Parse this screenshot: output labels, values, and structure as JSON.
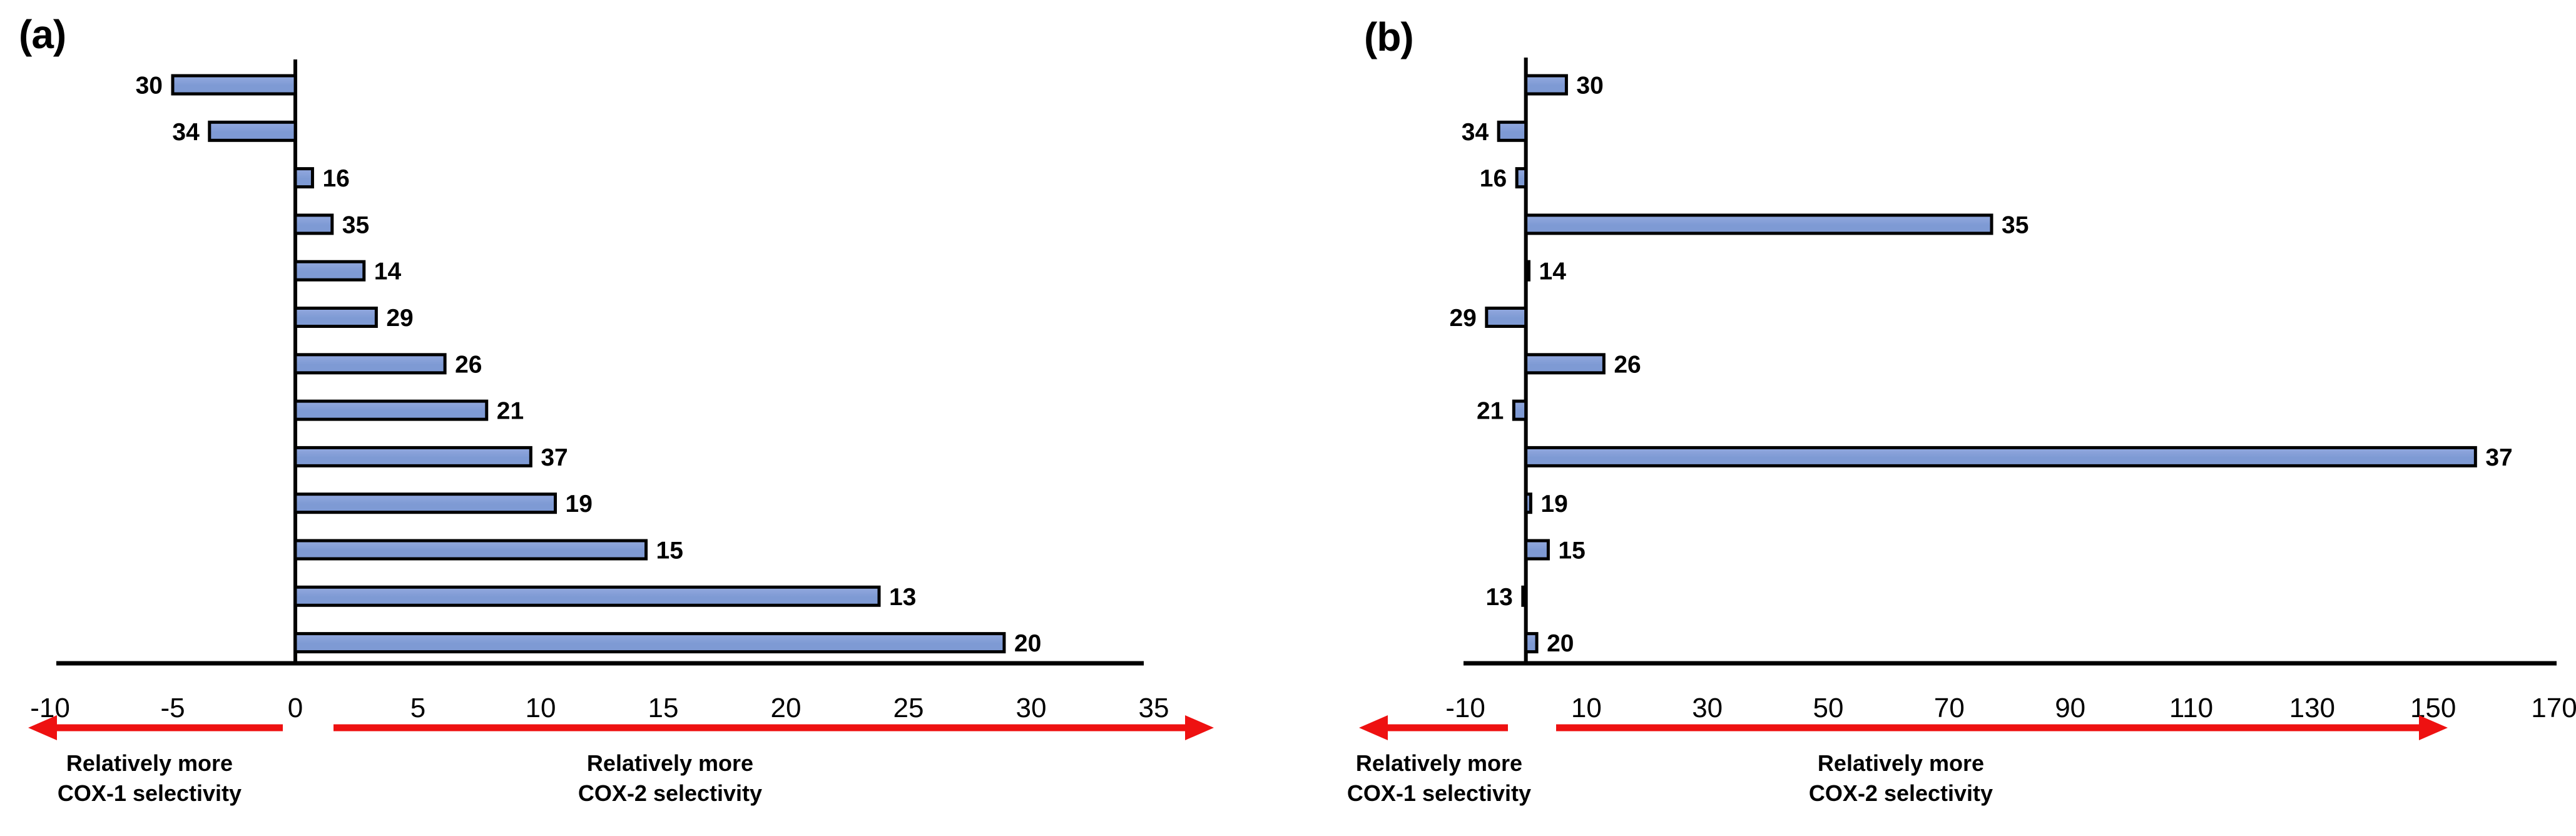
{
  "chart_data": [
    {
      "type": "bar",
      "orientation": "horizontal",
      "panel_label": "(a)",
      "categories": [
        "30",
        "34",
        "16",
        "35",
        "14",
        "29",
        "26",
        "21",
        "37",
        "19",
        "15",
        "13",
        "20"
      ],
      "values": [
        -5.0,
        -3.5,
        0.7,
        1.5,
        2.8,
        3.3,
        6.1,
        7.8,
        9.6,
        10.6,
        14.3,
        23.8,
        28.9
      ],
      "xlim": [
        -10,
        35
      ],
      "xticks": [
        -10,
        -5,
        0,
        5,
        10,
        15,
        20,
        25,
        30,
        35
      ],
      "grid": false,
      "legend": "none",
      "bar_color": "#7E9AD4",
      "bar_color_light": "#93A9DF",
      "bar_border_color": "#000000",
      "axis_color": "#000000",
      "arrow_color": "#EE1111",
      "annotations": {
        "left_line1": "Relatively more",
        "left_line2": "COX-1 selectivity",
        "right_line1": "Relatively more",
        "right_line2": "COX-2 selectivity"
      }
    },
    {
      "type": "bar",
      "orientation": "horizontal",
      "panel_label": "(b)",
      "categories": [
        "30",
        "34",
        "16",
        "35",
        "14",
        "29",
        "26",
        "21",
        "37",
        "19",
        "15",
        "13",
        "20"
      ],
      "values": [
        6.7,
        -4.5,
        -1.5,
        77,
        0.5,
        -6.5,
        12.9,
        -2.0,
        157,
        0.8,
        3.7,
        -0.5,
        1.8
      ],
      "xlim": [
        -10,
        170
      ],
      "xticks": [
        -10,
        10,
        30,
        50,
        70,
        90,
        110,
        130,
        150,
        170
      ],
      "grid": false,
      "legend": "none",
      "bar_color": "#7E9AD4",
      "bar_color_light": "#93A9DF",
      "bar_border_color": "#000000",
      "axis_color": "#000000",
      "arrow_color": "#EE1111",
      "annotations": {
        "left_line1": "Relatively more",
        "left_line2": "COX-1 selectivity",
        "right_line1": "Relatively more",
        "right_line2": "COX-2 selectivity"
      }
    }
  ]
}
